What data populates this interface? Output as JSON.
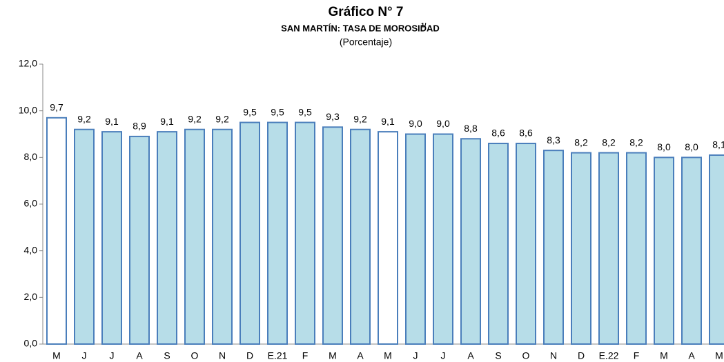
{
  "chart_data": {
    "type": "bar",
    "title": "Gráfico N° 7",
    "subtitle": "SAN MARTÍN: TASA DE MOROSIDAD",
    "subtitle_note": "1/",
    "units": "(Porcentaje)",
    "categories": [
      "M",
      "J",
      "J",
      "A",
      "S",
      "O",
      "N",
      "D",
      "E.21",
      "F",
      "M",
      "A",
      "M",
      "J",
      "J",
      "A",
      "S",
      "O",
      "N",
      "D",
      "E.22",
      "F",
      "M",
      "A",
      "M"
    ],
    "values": [
      9.7,
      9.2,
      9.1,
      8.9,
      9.1,
      9.2,
      9.2,
      9.5,
      9.5,
      9.5,
      9.3,
      9.2,
      9.1,
      9.0,
      9.0,
      8.8,
      8.6,
      8.6,
      8.3,
      8.2,
      8.2,
      8.2,
      8.0,
      8.0,
      8.1
    ],
    "value_labels": [
      "9,7",
      "9,2",
      "9,1",
      "8,9",
      "9,1",
      "9,2",
      "9,2",
      "9,5",
      "9,5",
      "9,5",
      "9,3",
      "9,2",
      "9,1",
      "9,0",
      "9,0",
      "8,8",
      "8,6",
      "8,6",
      "8,3",
      "8,2",
      "8,2",
      "8,2",
      "8,0",
      "8,0",
      "8,1"
    ],
    "colors": [
      "#ffffff",
      "#b7dde8",
      "#b7dde8",
      "#b7dde8",
      "#b7dde8",
      "#b7dde8",
      "#b7dde8",
      "#b7dde8",
      "#b7dde8",
      "#b7dde8",
      "#b7dde8",
      "#b7dde8",
      "#ffffff",
      "#b7dde8",
      "#b7dde8",
      "#b7dde8",
      "#b7dde8",
      "#b7dde8",
      "#b7dde8",
      "#b7dde8",
      "#b7dde8",
      "#b7dde8",
      "#b7dde8",
      "#b7dde8",
      "#b7dde8"
    ],
    "edge_color": "#4a7ebb",
    "ylim": [
      0,
      12
    ],
    "yticks": [
      {
        "value": 0,
        "label": "0,0"
      },
      {
        "value": 2,
        "label": "2,0"
      },
      {
        "value": 4,
        "label": "4,0"
      },
      {
        "value": 6,
        "label": "6,0"
      },
      {
        "value": 8,
        "label": "8,0"
      },
      {
        "value": 10,
        "label": "10,0"
      },
      {
        "value": 12,
        "label": "12,0"
      }
    ],
    "grid": false
  }
}
